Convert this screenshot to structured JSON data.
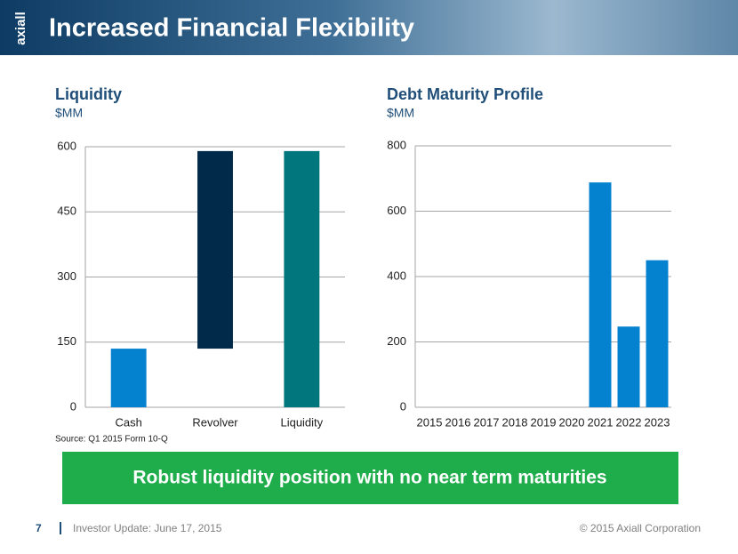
{
  "logo": "axiall",
  "header": {
    "title": "Increased Financial Flexibility"
  },
  "banner": "Robust liquidity position with no near term maturities",
  "footer": {
    "page": "7",
    "event": "Investor Update: June 17, 2015",
    "copyright": "© 2015 Axiall Corporation"
  },
  "chart_data": [
    {
      "type": "waterfall",
      "title": "Liquidity",
      "subtitle": "$MM",
      "categories": [
        "Cash",
        "Revolver",
        "Liquidity"
      ],
      "values": [
        135,
        455,
        590
      ],
      "measures": [
        "relative",
        "relative",
        "total"
      ],
      "colors": [
        "#0481cf",
        "#012a4a",
        "#01767d"
      ],
      "ylim": [
        0,
        600
      ],
      "yticks": [
        0,
        150,
        300,
        450,
        600
      ],
      "grid": true,
      "source": "Source: Q1 2015 Form 10-Q"
    },
    {
      "type": "bar",
      "title": "Debt Maturity Profile",
      "subtitle": "$MM",
      "categories": [
        "2015",
        "2016",
        "2017",
        "2018",
        "2019",
        "2020",
        "2021",
        "2022",
        "2023"
      ],
      "values": [
        0,
        0,
        0,
        0,
        0,
        0,
        688,
        247,
        450
      ],
      "color": "#0481cf",
      "ylim": [
        0,
        800
      ],
      "yticks": [
        0,
        200,
        400,
        600,
        800
      ],
      "grid": true
    }
  ]
}
